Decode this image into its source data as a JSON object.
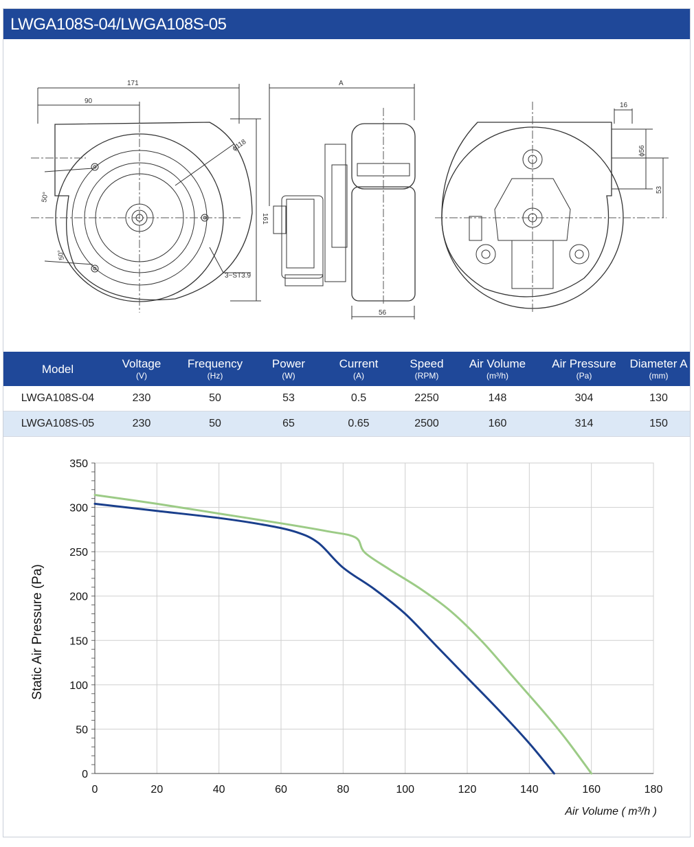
{
  "header": {
    "title": "LWGA108S-04/LWGA108S-05"
  },
  "drawing": {
    "dims": {
      "width_171": "171",
      "width_90": "90",
      "dia_118": "ϕ118",
      "height_161": "161",
      "angle_top": "50°",
      "angle_bottom": "50°",
      "screw": "3−ST3.9",
      "side_a": "A",
      "side_56": "56",
      "right_16": "16",
      "right_dia56": "ϕ56",
      "right_53": "53"
    }
  },
  "table": {
    "headers": [
      {
        "name": "Model",
        "unit": ""
      },
      {
        "name": "Voltage",
        "unit": "(V)"
      },
      {
        "name": "Frequency",
        "unit": "(Hz)"
      },
      {
        "name": "Power",
        "unit": "(W)"
      },
      {
        "name": "Current",
        "unit": "(A)"
      },
      {
        "name": "Speed",
        "unit": "(RPM)"
      },
      {
        "name": "Air Volume",
        "unit": "(m³/h)"
      },
      {
        "name": "Air Pressure",
        "unit": "(Pa)"
      },
      {
        "name": "Diameter A",
        "unit": "(mm)"
      }
    ],
    "rows": [
      [
        "LWGA108S-04",
        "230",
        "50",
        "53",
        "0.5",
        "2250",
        "148",
        "304",
        "130"
      ],
      [
        "LWGA108S-05",
        "230",
        "50",
        "65",
        "0.65",
        "2500",
        "160",
        "314",
        "150"
      ]
    ]
  },
  "chart_data": {
    "type": "line",
    "title": "",
    "xlabel": "Air Volume ( m³/h )",
    "ylabel": "Static Air Pressure  (Pa)",
    "xlim": [
      0,
      180
    ],
    "ylim": [
      0,
      350
    ],
    "xticks": [
      0,
      20,
      40,
      60,
      80,
      100,
      120,
      140,
      160,
      180
    ],
    "yticks": [
      0,
      50,
      100,
      150,
      200,
      250,
      300,
      350
    ],
    "grid": true,
    "legend": "none",
    "series": [
      {
        "color": "#1a3f8c",
        "x": [
          0,
          20,
          40,
          55,
          65,
          72,
          80,
          90,
          100,
          110,
          120,
          130,
          140,
          148
        ],
        "y": [
          304,
          296,
          288,
          280,
          272,
          260,
          232,
          208,
          180,
          144,
          108,
          72,
          34,
          0
        ]
      },
      {
        "color": "#9ccb86",
        "x": [
          0,
          20,
          40,
          60,
          75,
          84,
          87,
          95,
          105,
          115,
          125,
          135,
          145,
          152,
          160
        ],
        "y": [
          314,
          304,
          293,
          282,
          273,
          266,
          249,
          230,
          208,
          182,
          148,
          108,
          68,
          38,
          0
        ]
      }
    ]
  }
}
